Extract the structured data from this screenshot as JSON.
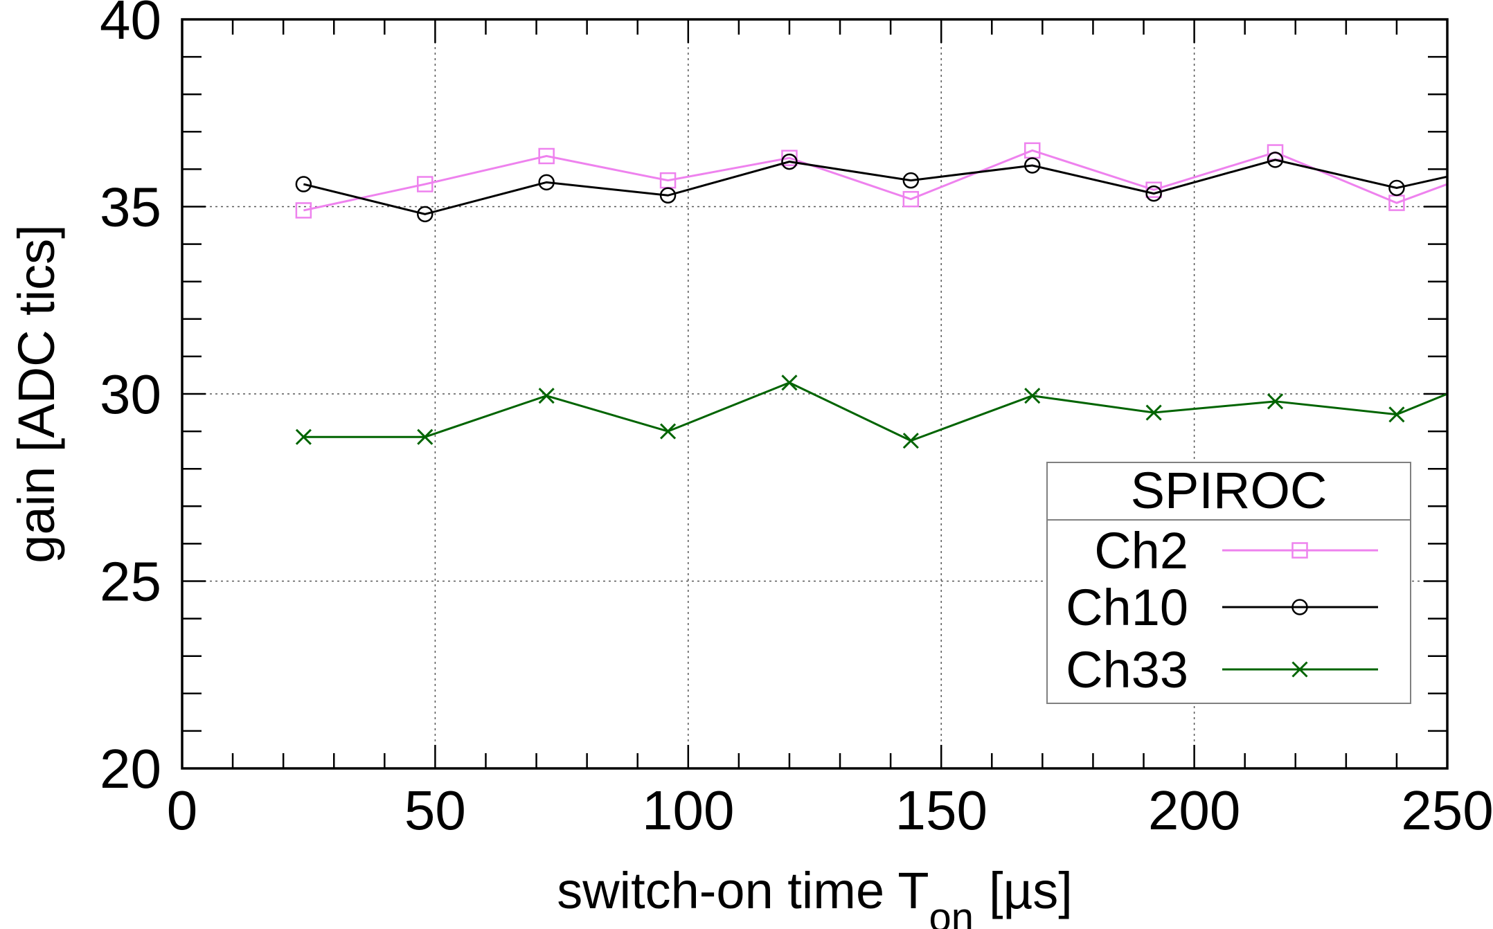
{
  "chart_data": {
    "type": "line",
    "title": "",
    "xlabel": "switch-on time T",
    "xlabel_sub": "on",
    "xlabel_unit": "[µs]",
    "ylabel": "gain [ADC tics]",
    "xlim": [
      0,
      250
    ],
    "ylim": [
      20,
      40
    ],
    "xticks": [
      0,
      50,
      100,
      150,
      200,
      250
    ],
    "yticks": [
      20,
      25,
      30,
      35,
      40
    ],
    "x_minor_step": 10,
    "y_minor_step": 1,
    "grid": true,
    "x_grid": [
      50,
      100,
      150,
      200
    ],
    "y_grid": [
      25,
      30,
      35
    ],
    "legend": {
      "title": "SPIROC",
      "position": "bottom-right"
    },
    "x": [
      24,
      48,
      72,
      96,
      120,
      144,
      168,
      192,
      216,
      240,
      250
    ],
    "series": [
      {
        "name": "Ch2",
        "color": "#ee82ee",
        "marker": "square",
        "values": [
          34.9,
          35.6,
          36.35,
          35.7,
          36.3,
          35.2,
          36.5,
          35.45,
          36.45,
          35.1,
          35.6
        ]
      },
      {
        "name": "Ch10",
        "color": "#000000",
        "marker": "circle",
        "values": [
          35.6,
          34.8,
          35.65,
          35.3,
          36.2,
          35.7,
          36.1,
          35.35,
          36.25,
          35.5,
          35.8
        ]
      },
      {
        "name": "Ch33",
        "color": "#006400",
        "marker": "cross",
        "values": [
          28.85,
          28.85,
          29.95,
          29.0,
          30.3,
          28.75,
          29.95,
          29.5,
          29.8,
          29.45,
          30.0
        ]
      }
    ]
  }
}
